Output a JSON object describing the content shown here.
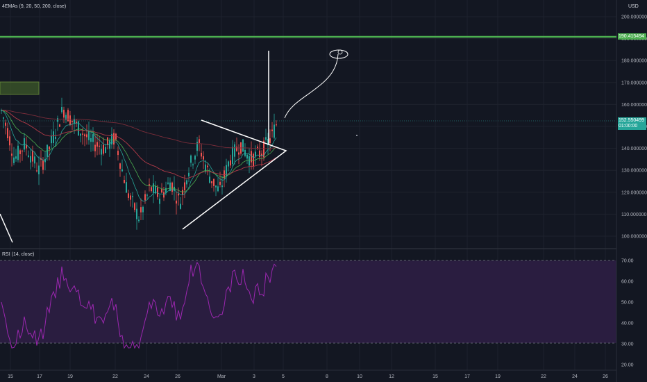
{
  "main_indicator": "4EMAs (9, 20, 50, 200, close)",
  "rsi_indicator": "RSI (14, close)",
  "currency": "USD",
  "price_axis": [
    "200.000000",
    "190.000000",
    "180.000000",
    "170.000000",
    "160.000000",
    "150.000000",
    "140.000000",
    "130.000000",
    "120.000000",
    "110.000000",
    "100.000000"
  ],
  "rsi_axis": [
    "70.00",
    "60.00",
    "50.00",
    "40.00",
    "30.00",
    "20.00"
  ],
  "time_axis": [
    "15",
    "17",
    "19",
    "22",
    "24",
    "26",
    "Mar",
    "3",
    "5",
    "8",
    "10",
    "12",
    "15",
    "17",
    "19",
    "22",
    "24",
    "26"
  ],
  "tags": {
    "resistance_price": "190.415494",
    "current_price": "152.550499",
    "countdown": "01:00:00"
  },
  "colors": {
    "background": "#131722",
    "up_candle": "#26a69a",
    "down_candle": "#ef5350",
    "resistance": "#4caf50",
    "rsi_line": "#9c27b0",
    "rsi_band": "#2a1d40",
    "drawing": "#ffffff",
    "price_tag": "#26a69a"
  }
}
